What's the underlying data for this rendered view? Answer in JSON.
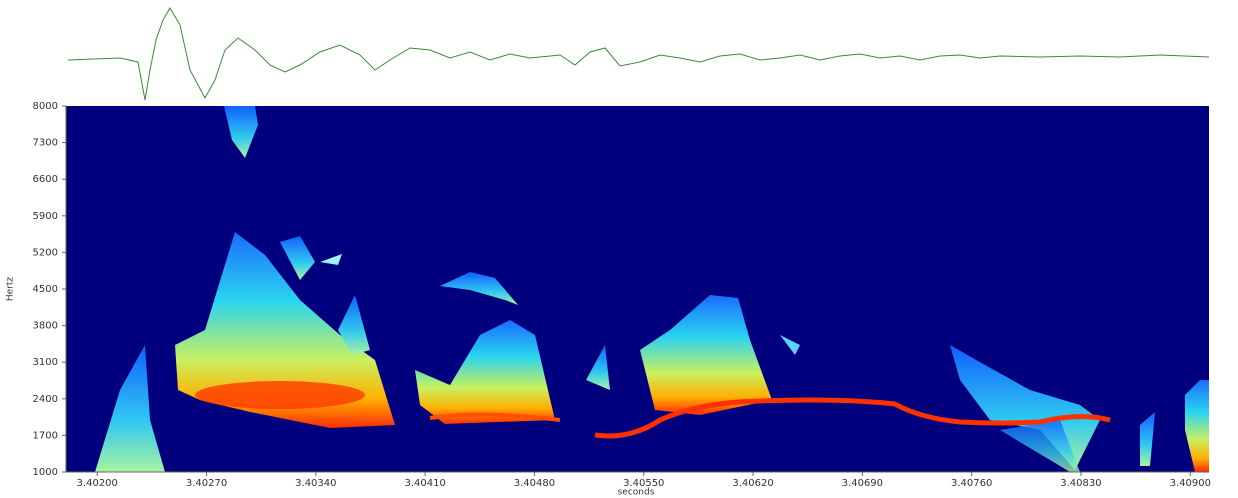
{
  "chart_data": {
    "type": "spectrogram",
    "x_label": "seconds",
    "y_label": "Hertz",
    "xlim": [
      3.4018,
      3.40912
    ],
    "ylim": [
      1000,
      8000
    ],
    "xticks": [
      {
        "value": 3.402,
        "label": "3.40200"
      },
      {
        "value": 3.4027,
        "label": "3.40270"
      },
      {
        "value": 3.4034,
        "label": "3.40340"
      },
      {
        "value": 3.4041,
        "label": "3.40410"
      },
      {
        "value": 3.4048,
        "label": "3.40480"
      },
      {
        "value": 3.4055,
        "label": "3.40550"
      },
      {
        "value": 3.4062,
        "label": "3.40620"
      },
      {
        "value": 3.4069,
        "label": "3.40690"
      },
      {
        "value": 3.4076,
        "label": "3.40760"
      },
      {
        "value": 3.4083,
        "label": "3.40830"
      },
      {
        "value": 3.409,
        "label": "3.40900"
      }
    ],
    "yticks": [
      8000,
      7300,
      6600,
      5900,
      5200,
      4500,
      3800,
      3100,
      2400,
      1700,
      1000
    ],
    "background": "#00007f",
    "waveform_color": "#3a8a3a"
  }
}
